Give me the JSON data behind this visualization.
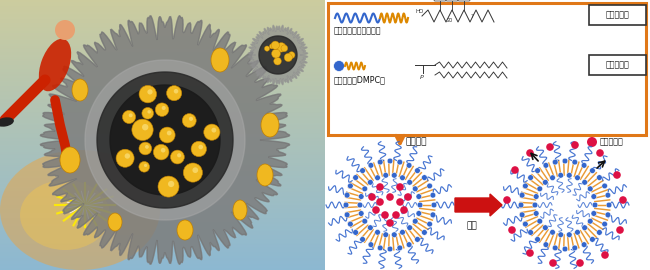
{
  "bg_color": "#ffffff",
  "orange_border": "#e07818",
  "label_amphiphilic": "両親媒性ポリペプチド",
  "label_phospholipid": "リン脂質（DMPC）",
  "label_structural": "構造安定性",
  "label_temperature": "温度応答性",
  "label_coassembly": "共集合化",
  "label_heating": "加熱",
  "label_hydrophilic_drug": "親水性薬剤",
  "arrow_down_color": "#e07818",
  "arrow_right_color": "#cc1111",
  "wavy_blue": "#3366cc",
  "wavy_orange": "#dd8800",
  "lipid_color": "#e89020",
  "drug_color": "#dd1144",
  "text_color": "#111111",
  "photo_bg_top": "#a8c8e0",
  "photo_bg_bottom": "#c8a870",
  "capsule_gray_outer": "#909090",
  "capsule_gray_inner": "#404040",
  "capsule_gray_mid": "#606060",
  "yellow_ball": "#f0b820",
  "yellow_ball_edge": "#c08000"
}
